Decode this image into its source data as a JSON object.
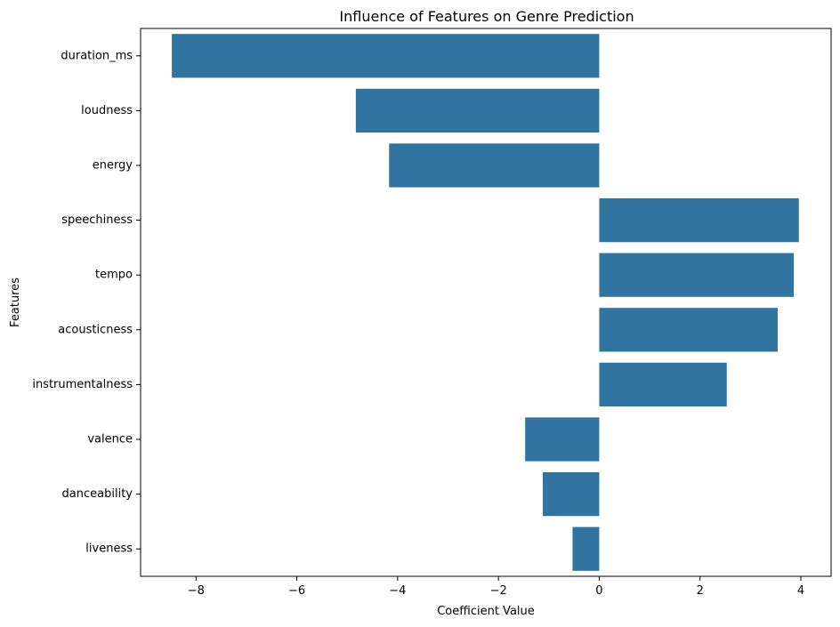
{
  "chart_data": {
    "type": "bar",
    "orientation": "horizontal",
    "title": "Influence of Features on Genre Prediction",
    "xlabel": "Coefficient Value",
    "ylabel": "Features",
    "categories": [
      "duration_ms",
      "loudness",
      "energy",
      "speechiness",
      "tempo",
      "acousticness",
      "instrumentalness",
      "valence",
      "danceability",
      "liveness"
    ],
    "values": [
      -8.48,
      -4.83,
      -4.17,
      3.96,
      3.86,
      3.54,
      2.53,
      -1.47,
      -1.12,
      -0.53
    ],
    "xticks": [
      -8,
      -6,
      -4,
      -2,
      0,
      2,
      4
    ],
    "xtick_labels": [
      "−8",
      "−6",
      "−4",
      "−2",
      "0",
      "2",
      "4"
    ],
    "xlim": [
      -9.1,
      4.6
    ],
    "bar_color": "#3274a1",
    "grid": false,
    "legend": false
  }
}
